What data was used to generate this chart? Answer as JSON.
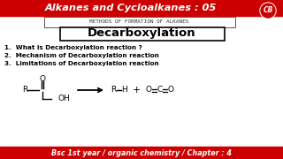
{
  "top_bar_color": "#cc0000",
  "bottom_bar_color": "#cc0000",
  "bg_color": "#ffffff",
  "top_title": "Alkanes and Cycloalkanes : 05",
  "top_title_color": "#ffffff",
  "subtitle_box_text": "METHODS OF FORMATION OF ALKANES",
  "subtitle_box_color": "#ffffff",
  "subtitle_box_border": "#555555",
  "main_title": "Decarboxylation",
  "main_title_color": "#000000",
  "main_title_box_border": "#000000",
  "points": [
    "1.  What is Decarboxylation reaction ?",
    "2.  Mechanism of Decarboxylation reaction",
    "3.  Limitations of Decarboxylation reaction"
  ],
  "points_color": "#000000",
  "bottom_text": "Bsc 1st year / organic chemistry / Chapter : 4",
  "bottom_text_color": "#ffffff",
  "cb_circle_color": "#cc0000",
  "cb_text_color": "#ffffff"
}
